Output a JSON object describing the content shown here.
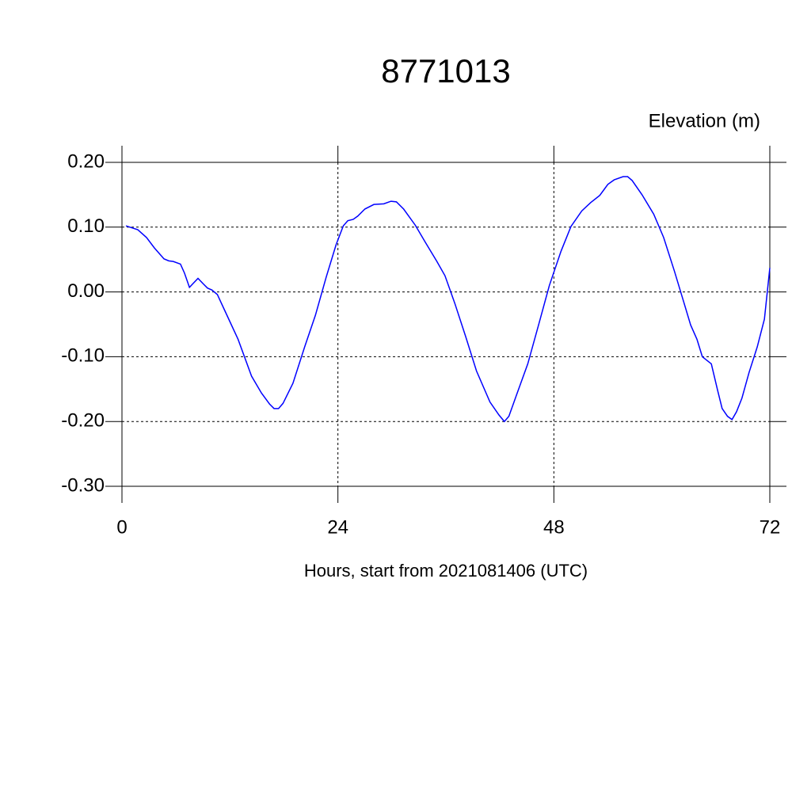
{
  "chart_data": {
    "type": "line",
    "title": "8771013",
    "ylabel": "Elevation (m)",
    "xlabel": "Hours, start from 2021081406 (UTC)",
    "x": [
      0.44,
      1.76,
      2.73,
      3.6,
      4.67,
      5.2,
      5.7,
      6.5,
      6.95,
      7.5,
      7.9,
      8.45,
      9.0,
      9.5,
      10.0,
      10.6,
      11.4,
      12.9,
      14.4,
      15.5,
      16.4,
      16.9,
      17.4,
      17.9,
      19.0,
      20.3,
      21.5,
      22.7,
      23.8,
      24.6,
      25.1,
      25.7,
      26.2,
      27.0,
      28.0,
      29.1,
      29.9,
      30.5,
      31.3,
      32.6,
      33.7,
      35.0,
      35.9,
      37.0,
      38.2,
      39.4,
      40.9,
      41.9,
      42.5,
      43.0,
      43.8,
      45.1,
      46.3,
      47.5,
      48.8,
      49.9,
      51.1,
      52.1,
      53.1,
      54.0,
      54.7,
      55.7,
      56.2,
      56.7,
      57.8,
      59.1,
      60.2,
      61.4,
      62.4,
      63.2,
      63.9,
      64.5,
      65.5,
      66.2,
      66.7,
      67.3,
      67.8,
      68.3,
      68.9,
      69.7,
      70.6,
      71.4,
      72.0
    ],
    "series": [
      {
        "color": "#0000ff",
        "values": [
          0.102,
          0.096,
          0.084,
          0.068,
          0.051,
          0.048,
          0.047,
          0.043,
          0.029,
          0.007,
          0.013,
          0.021,
          0.013,
          0.006,
          0.003,
          -0.004,
          -0.028,
          -0.073,
          -0.13,
          -0.156,
          -0.173,
          -0.18,
          -0.18,
          -0.172,
          -0.141,
          -0.085,
          -0.036,
          0.023,
          0.073,
          0.102,
          0.11,
          0.112,
          0.117,
          0.128,
          0.135,
          0.136,
          0.14,
          0.139,
          0.128,
          0.103,
          0.077,
          0.047,
          0.025,
          -0.018,
          -0.069,
          -0.122,
          -0.17,
          -0.19,
          -0.2,
          -0.192,
          -0.161,
          -0.111,
          -0.051,
          0.01,
          0.063,
          0.101,
          0.125,
          0.138,
          0.149,
          0.166,
          0.173,
          0.178,
          0.178,
          0.172,
          0.15,
          0.12,
          0.084,
          0.032,
          -0.014,
          -0.051,
          -0.073,
          -0.1,
          -0.111,
          -0.152,
          -0.18,
          -0.192,
          -0.197,
          -0.185,
          -0.164,
          -0.124,
          -0.085,
          -0.042,
          0.037
        ]
      }
    ],
    "xlim": [
      0,
      72
    ],
    "xticks": [
      0,
      24,
      48,
      72
    ],
    "ylim": [
      -0.3,
      0.2
    ],
    "yticks": [
      {
        "value": -0.3,
        "label": "-0.30"
      },
      {
        "value": -0.2,
        "label": "-0.20"
      },
      {
        "value": -0.1,
        "label": "-0.10"
      },
      {
        "value": 0,
        "label": "0.00"
      },
      {
        "value": 0.1,
        "label": "0.10"
      },
      {
        "value": 0.2,
        "label": "0.20"
      }
    ],
    "grid": true
  }
}
